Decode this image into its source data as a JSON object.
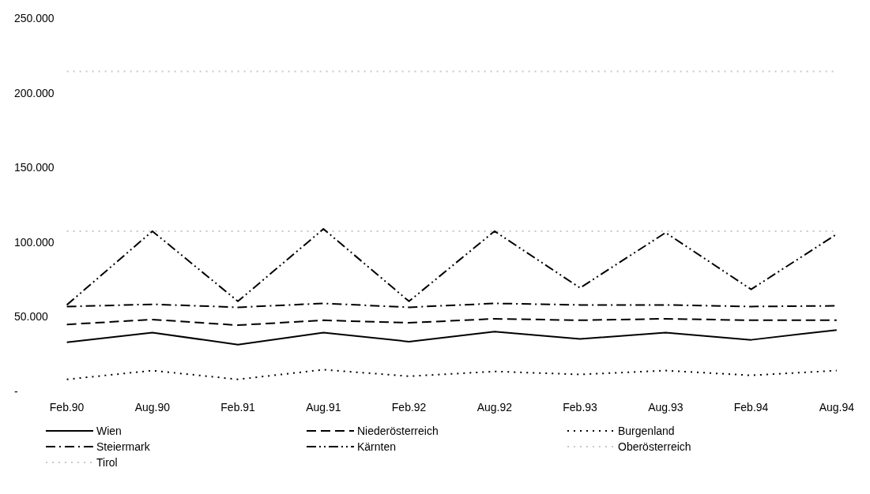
{
  "chart_data": {
    "type": "line",
    "categories": [
      "Feb.90",
      "Aug.90",
      "Feb.91",
      "Aug.91",
      "Feb.92",
      "Aug.92",
      "Feb.93",
      "Aug.93",
      "Feb.94",
      "Aug.94"
    ],
    "ylim": [
      0,
      250000
    ],
    "yticks": [
      {
        "value": 0,
        "label": "-"
      },
      {
        "value": 50000,
        "label": "50.000"
      },
      {
        "value": 100000,
        "label": "100.000"
      },
      {
        "value": 150000,
        "label": "150.000"
      },
      {
        "value": 200000,
        "label": "200.000"
      },
      {
        "value": 250000,
        "label": "250.000"
      }
    ],
    "grid": false,
    "legend": "bottom",
    "marker": "none",
    "series": [
      {
        "name": "Wien",
        "color": "#000000",
        "line_style": "solid",
        "values": [
          33600,
          40000,
          32000,
          40000,
          34000,
          40700,
          35800,
          40000,
          35200,
          41800
        ]
      },
      {
        "name": "Niederösterreich",
        "color": "#000000",
        "line_style": "dashed",
        "values": [
          45500,
          48800,
          45000,
          48300,
          46600,
          49300,
          48300,
          49300,
          48300,
          48300
        ]
      },
      {
        "name": "Burgenland",
        "color": "#000000",
        "line_style": "dotted",
        "values": [
          8700,
          14600,
          8700,
          15200,
          10800,
          14000,
          12000,
          14600,
          11400,
          14600
        ]
      },
      {
        "name": "Steiermark",
        "color": "#000000",
        "line_style": "dashdot",
        "values": [
          57500,
          59000,
          57000,
          59600,
          57000,
          59600,
          58600,
          58600,
          57500,
          58000
        ]
      },
      {
        "name": "Kärnten",
        "color": "#000000",
        "line_style": "dashdotdot",
        "values": [
          58600,
          108000,
          61000,
          109500,
          61000,
          108000,
          70000,
          107000,
          69000,
          106000
        ]
      },
      {
        "name": "Oberösterreich",
        "color": "#c8c8c8",
        "line_style": "dotted",
        "values": [
          215000,
          215000,
          215000,
          215000,
          215000,
          215000,
          215000,
          215000,
          215000,
          215000
        ]
      },
      {
        "name": "Tirol",
        "color": "#c8c8c8",
        "line_style": "dotted",
        "values": [
          108000,
          108000,
          108000,
          108000,
          108000,
          108000,
          108000,
          108000,
          108000,
          108000
        ]
      }
    ]
  }
}
